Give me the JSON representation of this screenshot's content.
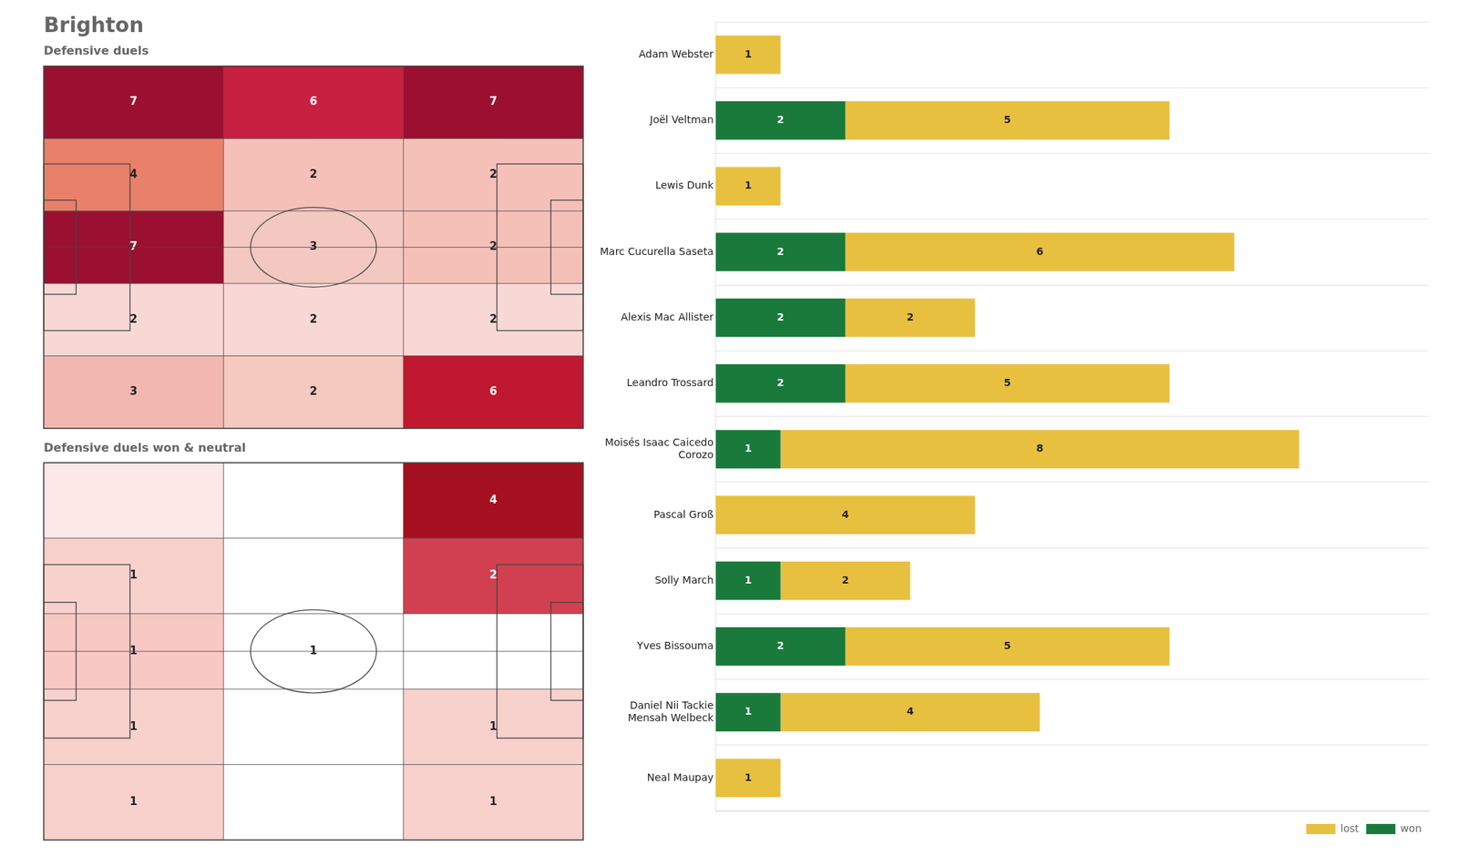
{
  "chart_data": [
    {
      "type": "heatmap",
      "title": "Brighton",
      "subtitle": "Defensive duels",
      "values": [
        [
          7,
          6,
          7
        ],
        [
          4,
          2,
          2
        ],
        [
          7,
          3,
          2
        ],
        [
          2,
          2,
          2
        ],
        [
          3,
          2,
          6
        ]
      ],
      "colors": [
        [
          "#9b1030",
          "#c82040",
          "#9b1030"
        ],
        [
          "#e8806a",
          "#f5c0b8",
          "#f5c0b8"
        ],
        [
          "#9b1030",
          "#f2c8c0",
          "#f5c0b8"
        ],
        [
          "#f8d8d5",
          "#f8d8d5",
          "#f8d8d5"
        ],
        [
          "#f2b8b0",
          "#f5c8c0",
          "#c01830"
        ]
      ],
      "data_labels": true,
      "tick_labels": false
    },
    {
      "type": "heatmap",
      "subtitle": "Defensive duels won & neutral",
      "values": [
        [
          0,
          0,
          4
        ],
        [
          1,
          0,
          2
        ],
        [
          1,
          1,
          0
        ],
        [
          1,
          0,
          1
        ],
        [
          1,
          0,
          1
        ]
      ],
      "value_labels": [
        [
          null,
          null,
          "4"
        ],
        [
          "1",
          null,
          "2"
        ],
        [
          "1",
          "1",
          null
        ],
        [
          "1",
          null,
          "1"
        ],
        [
          "1",
          null,
          "1"
        ]
      ],
      "colors": [
        [
          "#fce8e6",
          "#ffffff",
          "#a51020"
        ],
        [
          "#f8d0cc",
          "#ffffff",
          "#d04050"
        ],
        [
          "#f8c8c4",
          "#ffffff",
          "#ffffff"
        ],
        [
          "#f8d0cc",
          "#ffffff",
          "#f8d0cc"
        ],
        [
          "#f8d0cc",
          "#ffffff",
          "#f8d0cc"
        ]
      ],
      "data_labels": true,
      "tick_labels": false
    },
    {
      "type": "bar",
      "orientation": "horizontal",
      "stacked": true,
      "categories": [
        "Adam Webster",
        "Joël Veltman",
        "Lewis Dunk",
        "Marc Cucurella Saseta",
        "Alexis Mac Allister",
        "Leandro Trossard",
        "Moisés Isaac Caicedo\nCorozo",
        "Pascal Groß",
        "Solly March",
        "Yves Bissouma",
        "Daniel Nii Tackie\nMensah Welbeck",
        "Neal Maupay"
      ],
      "series": [
        {
          "name": "won",
          "color": "#1a7a3c",
          "values": [
            0,
            2,
            0,
            2,
            2,
            2,
            1,
            0,
            1,
            2,
            1,
            0
          ],
          "value_labels": [
            null,
            "2",
            null,
            "2",
            "2",
            "2",
            "1",
            null,
            "1",
            "2",
            "1",
            null
          ]
        },
        {
          "name": "lost",
          "color": "#e8c040",
          "values": [
            1,
            5,
            1,
            6,
            2,
            5,
            8,
            4,
            2,
            5,
            4,
            1
          ]
        }
      ],
      "xlim": [
        0,
        11
      ],
      "tick_labels": "y",
      "grid": true,
      "legend": "lower right",
      "data_labels": true
    }
  ]
}
